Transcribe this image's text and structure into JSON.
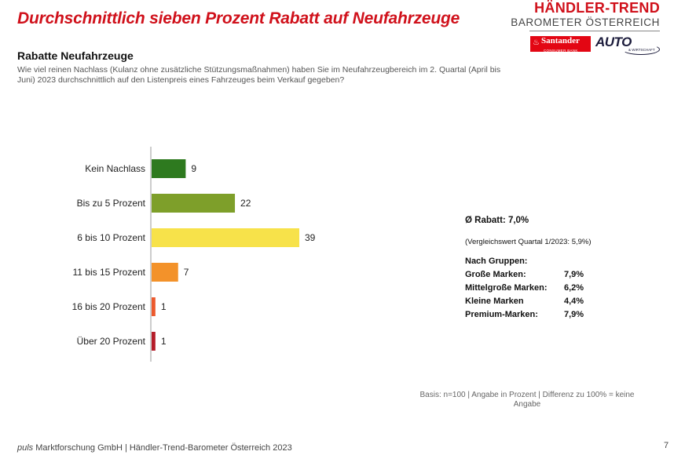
{
  "headline": "Durchschnittlich sieben Prozent Rabatt auf Neufahrzeuge",
  "brand": {
    "title": "HÄNDLER-TREND",
    "subtitle": "BAROMETER ÖSTERREICH",
    "santander_name": "Santander",
    "santander_sub": "CONSUMER BANK",
    "auto_name": "AUTO",
    "auto_sub": "& WIRTSCHAFT",
    "santander_color": "#e30613"
  },
  "section_title": "Rabatte Neufahrzeuge",
  "question": "Wie viel reinen Nachlass (Kulanz ohne zusätzliche Stützungsmaßnahmen) haben Sie im Neufahrzeugbereich im 2. Quartal (April bis Juni) 2023 durchschnittlich auf den Listenpreis eines Fahrzeuges beim Verkauf gegeben?",
  "chart_data": {
    "type": "bar",
    "orientation": "horizontal",
    "categories": [
      "Kein Nachlass",
      "Bis zu 5 Prozent",
      "6 bis 10 Prozent",
      "11 bis 15 Prozent",
      "16 bis 20 Prozent",
      "Über 20 Prozent"
    ],
    "values": [
      9,
      22,
      39,
      7,
      1,
      1
    ],
    "colors": [
      "#2e7a1f",
      "#7e9f2a",
      "#f7e24a",
      "#f3922a",
      "#ec5a2e",
      "#b51d2a"
    ],
    "value_labels": [
      "9",
      "22",
      "39",
      "7",
      "1",
      "1"
    ],
    "xlim": [
      0,
      40
    ],
    "grid": false,
    "legend": "none"
  },
  "stats": {
    "avg": "Ø Rabatt: 7,0%",
    "comparison": "(Vergleichswert Quartal 1/2023: 5,9%)",
    "groups_title": "Nach Gruppen:",
    "groups": [
      {
        "label": "Große Marken:",
        "value": "7,9%"
      },
      {
        "label": "Mittelgroße Marken:",
        "value": "6,2%"
      },
      {
        "label": "Kleine Marken",
        "value": "4,4%"
      },
      {
        "label": "Premium-Marken:",
        "value": "7,9%"
      }
    ]
  },
  "basis": "Basis: n=100 | Angabe in Prozent | Differenz zu 100% = keine Angabe",
  "footer": {
    "brand": "puls",
    "text": " Marktforschung GmbH | Händler-Trend-Barometer Österreich 2023"
  },
  "page_number": "7"
}
